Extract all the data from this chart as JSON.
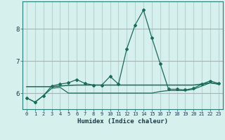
{
  "xlabel": "Humidex (Indice chaleur)",
  "bg_color": "#d6f0ee",
  "grid_color_h": "#d4a0a0",
  "grid_color_v": "#b8d4d0",
  "line_color": "#1a6b5a",
  "x_values": [
    0,
    1,
    2,
    3,
    4,
    5,
    6,
    7,
    8,
    9,
    10,
    11,
    12,
    13,
    14,
    15,
    16,
    17,
    18,
    19,
    20,
    21,
    22,
    23
  ],
  "line1": [
    5.85,
    5.72,
    5.92,
    6.22,
    6.28,
    6.32,
    6.42,
    6.3,
    6.25,
    6.25,
    6.52,
    6.28,
    7.38,
    8.12,
    8.58,
    7.72,
    6.92,
    6.12,
    6.12,
    6.1,
    6.15,
    6.28,
    6.38,
    6.3
  ],
  "line2": [
    5.85,
    5.72,
    5.92,
    6.15,
    6.18,
    6.0,
    6.0,
    6.0,
    6.0,
    6.0,
    6.0,
    6.0,
    6.0,
    6.0,
    6.0,
    6.0,
    6.05,
    6.08,
    6.08,
    6.08,
    6.12,
    6.22,
    6.32,
    6.28
  ],
  "line3": [
    6.2,
    6.2,
    6.2,
    6.2,
    6.22,
    6.24,
    6.25,
    6.25,
    6.25,
    6.25,
    6.25,
    6.25,
    6.25,
    6.25,
    6.25,
    6.25,
    6.25,
    6.25,
    6.25,
    6.25,
    6.25,
    6.28,
    6.32,
    6.28
  ],
  "ylim": [
    5.5,
    8.85
  ],
  "yticks": [
    6,
    7,
    8
  ],
  "xtick_labels": [
    "0",
    "1",
    "2",
    "3",
    "4",
    "5",
    "6",
    "7",
    "8",
    "9",
    "10",
    "11",
    "12",
    "13",
    "14",
    "15",
    "16",
    "17",
    "18",
    "19",
    "20",
    "21",
    "22",
    "23"
  ]
}
